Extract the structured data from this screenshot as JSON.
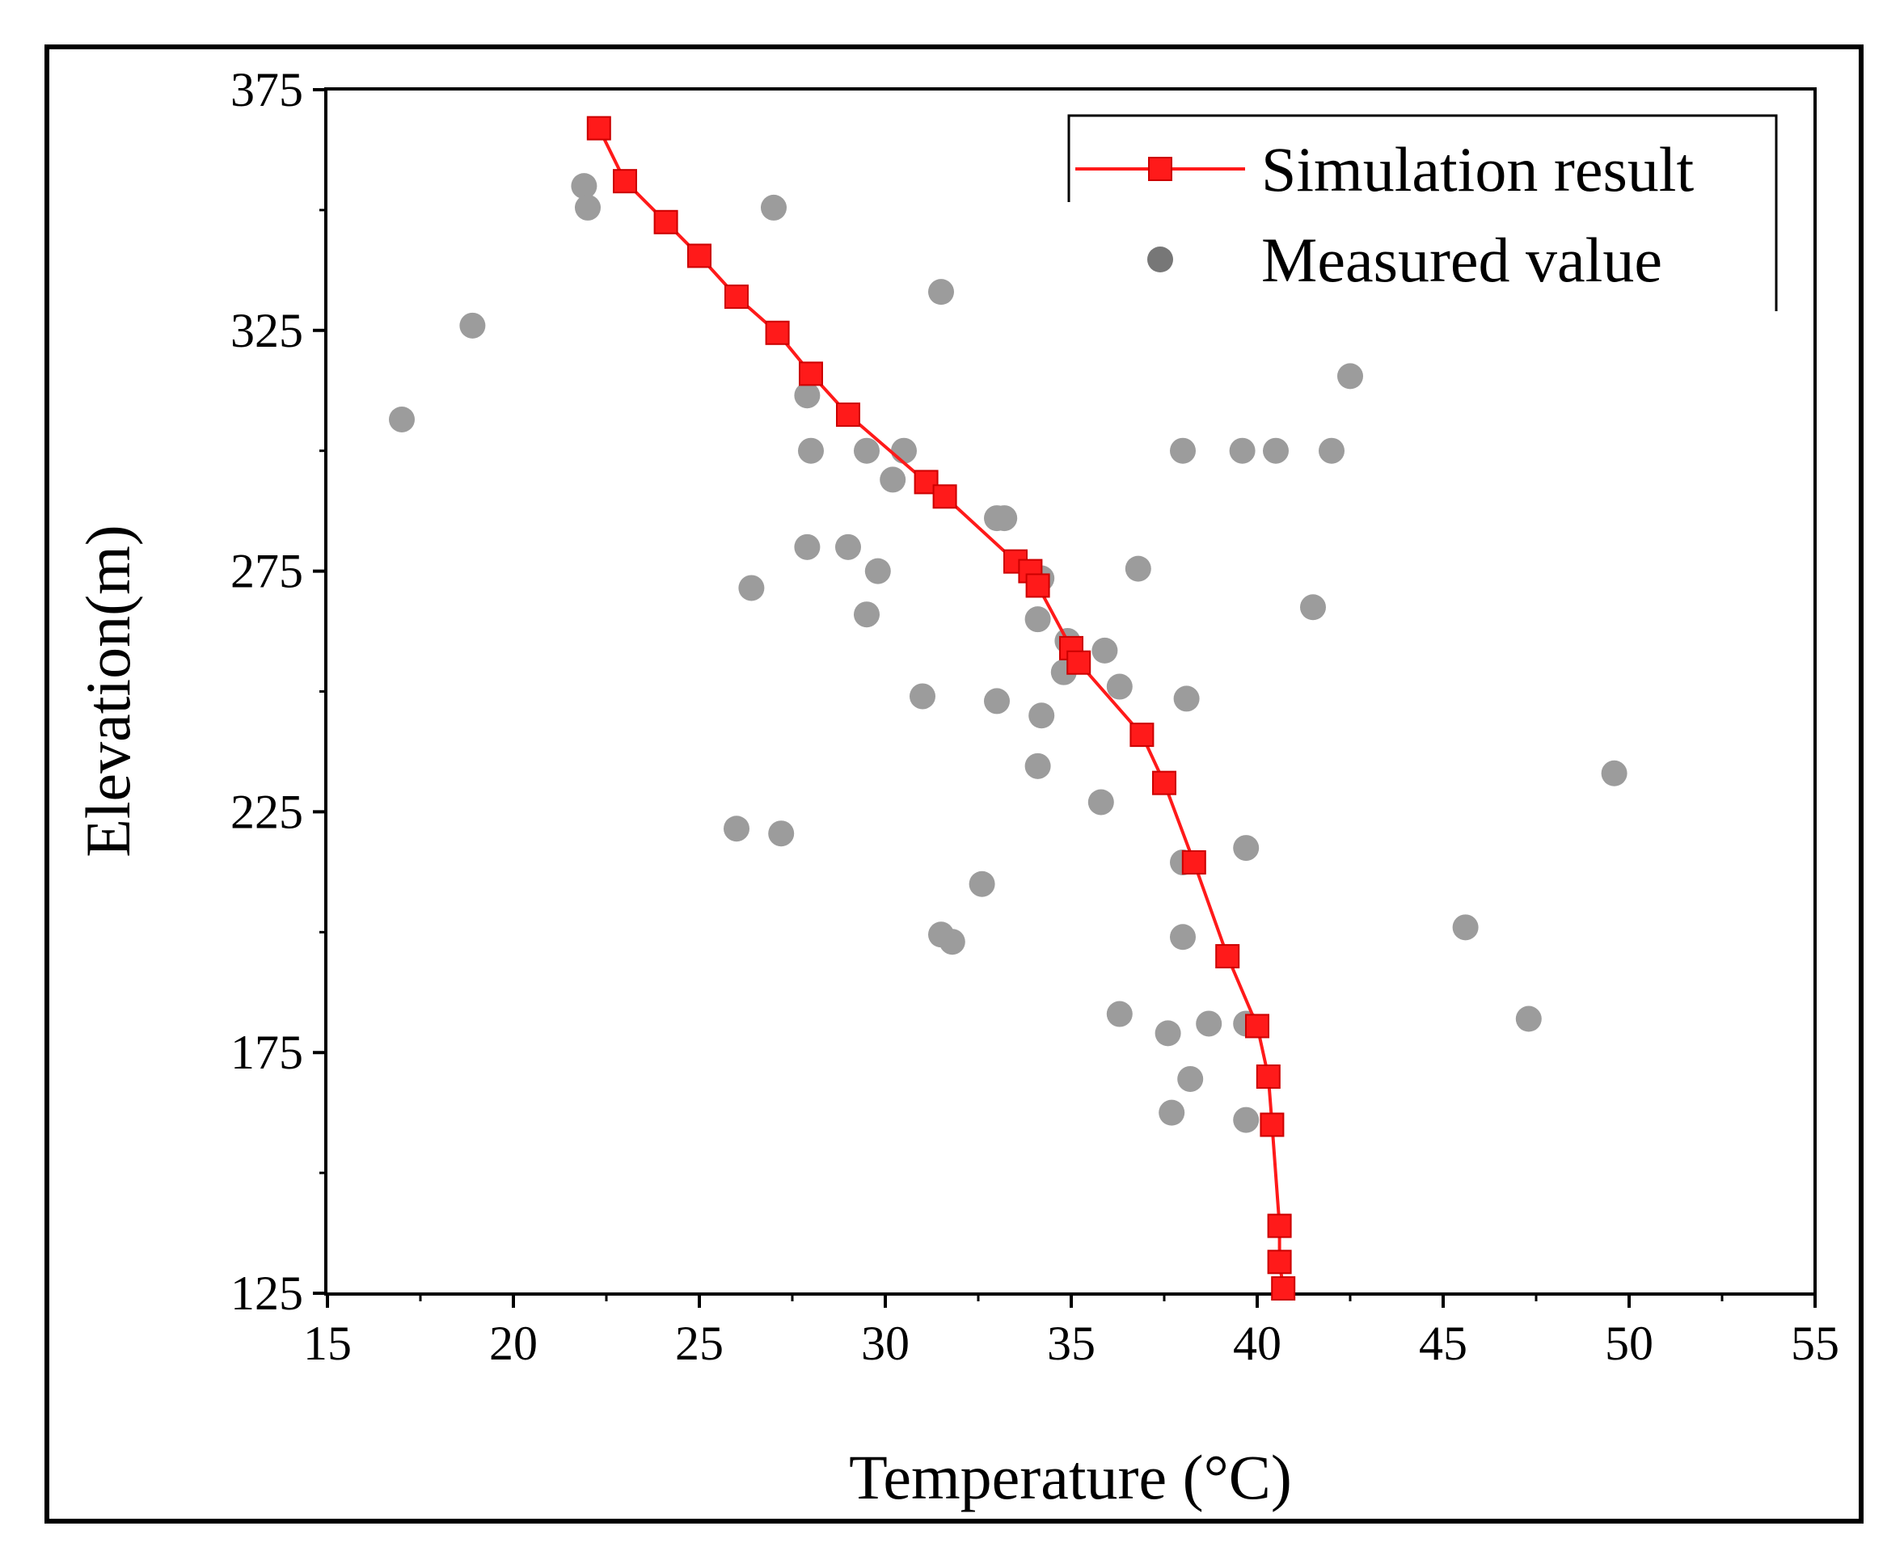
{
  "chart_data": {
    "type": "scatter",
    "title": "",
    "xlabel": "Temperature (°C)",
    "ylabel": "Elevation(m)",
    "xlim": [
      15,
      55
    ],
    "ylim": [
      125,
      375
    ],
    "xticks": [
      15,
      20,
      25,
      30,
      35,
      40,
      45,
      50,
      55
    ],
    "yticks": [
      125,
      175,
      225,
      275,
      325,
      375
    ],
    "legend_position": "top-right",
    "series": [
      {
        "name": "Simulation result",
        "kind": "line-square",
        "color": "#ff1a1a",
        "points": [
          [
            22.3,
            367
          ],
          [
            23.0,
            356
          ],
          [
            24.1,
            347.5
          ],
          [
            25.0,
            340.5
          ],
          [
            26.0,
            332
          ],
          [
            27.1,
            324.5
          ],
          [
            28.0,
            316
          ],
          [
            29.0,
            307.5
          ],
          [
            31.1,
            293.5
          ],
          [
            31.6,
            290.5
          ],
          [
            33.5,
            277
          ],
          [
            33.9,
            275
          ],
          [
            34.1,
            272
          ],
          [
            35.0,
            259
          ],
          [
            35.2,
            256
          ],
          [
            36.9,
            241
          ],
          [
            37.5,
            231
          ],
          [
            38.3,
            214.5
          ],
          [
            39.2,
            195
          ],
          [
            40.0,
            180.5
          ],
          [
            40.3,
            170
          ],
          [
            40.4,
            160
          ],
          [
            40.6,
            139
          ],
          [
            40.6,
            131.5
          ],
          [
            40.7,
            126
          ]
        ]
      },
      {
        "name": "Measured value",
        "kind": "scatter",
        "color": "#9c9c9c",
        "points": [
          [
            21.9,
            355
          ],
          [
            22.0,
            350.5
          ],
          [
            27.0,
            350.5
          ],
          [
            18.9,
            326
          ],
          [
            31.5,
            333
          ],
          [
            17.0,
            306.5
          ],
          [
            27.9,
            311.5
          ],
          [
            28.0,
            300
          ],
          [
            29.5,
            300
          ],
          [
            30.5,
            300
          ],
          [
            30.2,
            294
          ],
          [
            33.0,
            286
          ],
          [
            33.2,
            286
          ],
          [
            27.9,
            280
          ],
          [
            29.0,
            280
          ],
          [
            29.8,
            275
          ],
          [
            26.4,
            271.5
          ],
          [
            29.5,
            266
          ],
          [
            34.2,
            273.5
          ],
          [
            34.1,
            265
          ],
          [
            34.9,
            260.5
          ],
          [
            34.8,
            254
          ],
          [
            35.9,
            258.5
          ],
          [
            36.3,
            251
          ],
          [
            31.0,
            249
          ],
          [
            33.0,
            248
          ],
          [
            34.2,
            245
          ],
          [
            34.1,
            234.5
          ],
          [
            35.8,
            227
          ],
          [
            26.0,
            221.5
          ],
          [
            27.2,
            220.5
          ],
          [
            32.6,
            210
          ],
          [
            31.5,
            199.5
          ],
          [
            31.8,
            198
          ],
          [
            38.0,
            199
          ],
          [
            38.0,
            214.5
          ],
          [
            39.7,
            217.5
          ],
          [
            36.8,
            275.5
          ],
          [
            38.0,
            300
          ],
          [
            39.6,
            300
          ],
          [
            40.5,
            300
          ],
          [
            42.0,
            300
          ],
          [
            42.5,
            315.5
          ],
          [
            41.5,
            267.5
          ],
          [
            38.1,
            248.5
          ],
          [
            49.6,
            233
          ],
          [
            45.6,
            201
          ],
          [
            47.3,
            182
          ],
          [
            36.3,
            183
          ],
          [
            37.6,
            179
          ],
          [
            38.7,
            181
          ],
          [
            39.7,
            181
          ],
          [
            38.2,
            169.5
          ],
          [
            37.7,
            162.5
          ],
          [
            39.7,
            161
          ]
        ]
      }
    ]
  }
}
